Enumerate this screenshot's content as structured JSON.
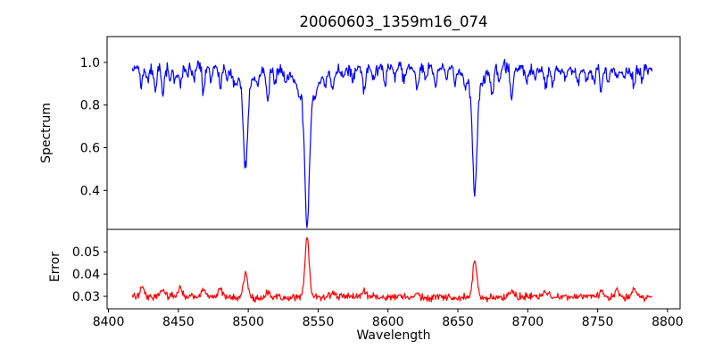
{
  "chart_data": {
    "type": "line",
    "title": "20060603_1359m16_074",
    "xlabel": "Wavelength",
    "xlim": [
      8399,
      8809
    ],
    "xticks": [
      8400,
      8450,
      8500,
      8550,
      8600,
      8650,
      8700,
      8750,
      8800
    ],
    "xtick_labels": [
      "8400",
      "8450",
      "8500",
      "8550",
      "8600",
      "8650",
      "8700",
      "8750",
      "8800"
    ],
    "x_start": 8417,
    "x_end": 8789,
    "x_step": 0.5,
    "grid": false,
    "legend": "none",
    "noise_seed": 20060603,
    "panels": [
      {
        "name": "spectrum",
        "ylabel": "Spectrum",
        "line_color": "#0000ff",
        "ylim": [
          0.217,
          1.121
        ],
        "yticks": [
          0.4,
          0.6,
          0.8,
          1.0
        ],
        "ytick_labels": [
          "0.4",
          "0.6",
          "0.8",
          "1.0"
        ],
        "continuum": 0.972,
        "noise_sigma": 0.014,
        "strong_lines": [
          {
            "center": 8498.0,
            "core_depth": 0.38,
            "core_sigma": 1.4,
            "wing_depth": 0.09,
            "wing_sigma": 5.0
          },
          {
            "center": 8542.1,
            "core_depth": 0.6,
            "core_sigma": 1.7,
            "wing_depth": 0.12,
            "wing_sigma": 7.0
          },
          {
            "center": 8662.1,
            "core_depth": 0.5,
            "core_sigma": 1.5,
            "wing_depth": 0.1,
            "wing_sigma": 6.0
          }
        ],
        "weak_line_sigma": 0.9,
        "weak_lines": [
          [
            8423.5,
            0.09
          ],
          [
            8428,
            0.06
          ],
          [
            8433.5,
            0.11
          ],
          [
            8439,
            0.13
          ],
          [
            8444,
            0.05
          ],
          [
            8447.5,
            0.07
          ],
          [
            8451.5,
            0.09
          ],
          [
            8456,
            0.05
          ],
          [
            8461,
            0.06
          ],
          [
            8468,
            0.13
          ],
          [
            8473.5,
            0.06
          ],
          [
            8480,
            0.1
          ],
          [
            8485,
            0.05
          ],
          [
            8490,
            0.05
          ],
          [
            8507,
            0.05
          ],
          [
            8514,
            0.15
          ],
          [
            8519,
            0.06
          ],
          [
            8527,
            0.07
          ],
          [
            8536,
            0.05
          ],
          [
            8548,
            0.05
          ],
          [
            8555,
            0.06
          ],
          [
            8560.5,
            0.08
          ],
          [
            8568,
            0.05
          ],
          [
            8575,
            0.05
          ],
          [
            8583,
            0.1
          ],
          [
            8590,
            0.06
          ],
          [
            8598,
            0.08
          ],
          [
            8605,
            0.05
          ],
          [
            8611.5,
            0.06
          ],
          [
            8621,
            0.11
          ],
          [
            8627,
            0.06
          ],
          [
            8634,
            0.08
          ],
          [
            8642,
            0.05
          ],
          [
            8648,
            0.07
          ],
          [
            8655,
            0.04
          ],
          [
            8674.5,
            0.13
          ],
          [
            8679.5,
            0.07
          ],
          [
            8688.5,
            0.16
          ],
          [
            8699,
            0.06
          ],
          [
            8705,
            0.04
          ],
          [
            8713,
            0.09
          ],
          [
            8718,
            0.06
          ],
          [
            8727,
            0.05
          ],
          [
            8736,
            0.07
          ],
          [
            8742,
            0.05
          ],
          [
            8747.5,
            0.06
          ],
          [
            8752.5,
            0.11
          ],
          [
            8757.5,
            0.07
          ],
          [
            8764,
            0.06
          ],
          [
            8769,
            0.05
          ],
          [
            8776,
            0.08
          ],
          [
            8782,
            0.05
          ]
        ]
      },
      {
        "name": "error",
        "ylabel": "Error",
        "line_color": "#ff0000",
        "ylim": [
          0.0244,
          0.0601
        ],
        "yticks": [
          0.03,
          0.04,
          0.05
        ],
        "ytick_labels": [
          "0.03",
          "0.04",
          "0.05"
        ],
        "baseline": 0.0296,
        "noise_sigma": 0.0008,
        "spike_sigma": 1.5,
        "spikes": [
          [
            8424,
            0.004
          ],
          [
            8439,
            0.003
          ],
          [
            8451.5,
            0.0032
          ],
          [
            8468,
            0.0035
          ],
          [
            8480,
            0.0045
          ],
          [
            8498.0,
            0.0112
          ],
          [
            8514,
            0.003
          ],
          [
            8542.1,
            0.0272
          ],
          [
            8560.5,
            0.002
          ],
          [
            8583,
            0.0022
          ],
          [
            8621,
            0.002
          ],
          [
            8662.1,
            0.0165
          ],
          [
            8688.5,
            0.0035
          ],
          [
            8713,
            0.002
          ],
          [
            8752.5,
            0.0028
          ],
          [
            8764,
            0.003
          ],
          [
            8776,
            0.004
          ]
        ]
      }
    ]
  }
}
